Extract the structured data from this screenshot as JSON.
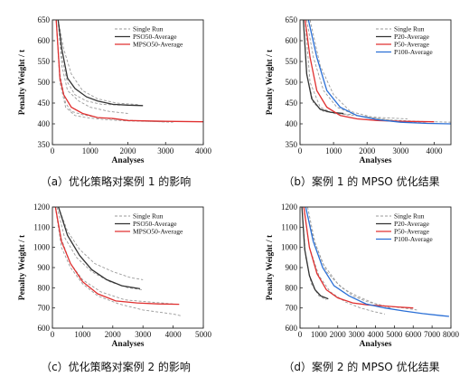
{
  "chart_data": [
    {
      "type": "line",
      "caption": "（a）优化策略对案例 1 的影响",
      "xlabel": "Analyses",
      "ylabel": "Penalty Weight / t",
      "xlim": [
        0,
        4000
      ],
      "ylim": [
        350,
        650
      ],
      "xticks": [
        0,
        1000,
        2000,
        3000,
        4000
      ],
      "yticks": [
        350,
        400,
        450,
        500,
        550,
        600,
        650
      ],
      "legend": {
        "position": "top-right",
        "entries": [
          "Single Run",
          "PSO50-Average",
          "MPSO50-Average"
        ]
      },
      "series": [
        {
          "name": "Single Run",
          "color": "#9a9a9a",
          "dashed": true,
          "x": [
            150,
            250,
            400,
            600,
            900,
            1300,
            1800
          ],
          "y": [
            650,
            560,
            500,
            470,
            455,
            447,
            445
          ]
        },
        {
          "name": "Single Run",
          "color": "#9a9a9a",
          "dashed": true,
          "x": [
            150,
            300,
            500,
            800,
            1200,
            1700,
            2300
          ],
          "y": [
            650,
            580,
            520,
            480,
            460,
            450,
            446
          ]
        },
        {
          "name": "Single Run",
          "color": "#9a9a9a",
          "dashed": true,
          "x": [
            150,
            250,
            400,
            700,
            1000,
            1500,
            2000
          ],
          "y": [
            650,
            540,
            480,
            455,
            440,
            430,
            425
          ]
        },
        {
          "name": "Single Run",
          "color": "#9a9a9a",
          "dashed": true,
          "x": [
            100,
            200,
            350,
            500,
            800,
            1200,
            1800,
            2500,
            3200
          ],
          "y": [
            650,
            520,
            450,
            430,
            422,
            415,
            410,
            406,
            404
          ]
        },
        {
          "name": "Single Run",
          "color": "#9a9a9a",
          "dashed": true,
          "x": [
            100,
            200,
            350,
            600,
            900,
            1400,
            2000,
            3000
          ],
          "y": [
            650,
            500,
            440,
            420,
            415,
            410,
            407,
            405
          ]
        },
        {
          "name": "PSO50-Average",
          "color": "#333333",
          "dashed": false,
          "x": [
            150,
            250,
            400,
            600,
            900,
            1200,
            1600,
            2000,
            2400
          ],
          "y": [
            650,
            580,
            510,
            485,
            465,
            455,
            447,
            445,
            444
          ]
        },
        {
          "name": "MPSO50-Average",
          "color": "#e03030",
          "dashed": false,
          "x": [
            100,
            200,
            300,
            500,
            800,
            1200,
            1600,
            2000,
            3000,
            4000
          ],
          "y": [
            650,
            510,
            470,
            440,
            425,
            415,
            413,
            408,
            406,
            405
          ]
        }
      ]
    },
    {
      "type": "line",
      "caption": "（b）案例 1 的 MPSO 优化结果",
      "xlabel": "Analyses",
      "ylabel": "Penalty Weight / t",
      "xlim": [
        0,
        4500
      ],
      "ylim": [
        350,
        650
      ],
      "xticks": [
        0,
        1000,
        2000,
        3000,
        4000
      ],
      "yticks": [
        350,
        400,
        450,
        500,
        550,
        600,
        650
      ],
      "legend": {
        "position": "top-right",
        "entries": [
          "Single Run",
          "P20-Average",
          "P50-Average",
          "P100-Average"
        ]
      },
      "series": [
        {
          "name": "Single Run",
          "color": "#9a9a9a",
          "dashed": true,
          "x": [
            100,
            200,
            400,
            700,
            1100,
            1600
          ],
          "y": [
            650,
            520,
            450,
            430,
            425,
            422
          ]
        },
        {
          "name": "Single Run",
          "color": "#9a9a9a",
          "dashed": true,
          "x": [
            200,
            400,
            700,
            1100,
            1700,
            2500,
            3500,
            4500
          ],
          "y": [
            650,
            560,
            480,
            440,
            420,
            410,
            406,
            404
          ]
        },
        {
          "name": "Single Run",
          "color": "#9a9a9a",
          "dashed": true,
          "x": [
            300,
            600,
            1000,
            1500,
            2200,
            3000,
            3800
          ],
          "y": [
            650,
            540,
            470,
            430,
            415,
            405,
            402
          ]
        },
        {
          "name": "Single Run",
          "color": "#9a9a9a",
          "dashed": true,
          "x": [
            150,
            300,
            600,
            1000,
            1600,
            2400,
            3200
          ],
          "y": [
            650,
            500,
            440,
            425,
            420,
            415,
            412
          ]
        },
        {
          "name": "P20-Average",
          "color": "#333333",
          "dashed": false,
          "x": [
            100,
            200,
            350,
            600,
            900,
            1300
          ],
          "y": [
            650,
            520,
            460,
            435,
            428,
            425
          ]
        },
        {
          "name": "P50-Average",
          "color": "#e03030",
          "dashed": false,
          "x": [
            150,
            300,
            500,
            800,
            1200,
            1700,
            2300,
            3000,
            4000
          ],
          "y": [
            650,
            560,
            480,
            440,
            420,
            412,
            408,
            406,
            405
          ]
        },
        {
          "name": "P100-Average",
          "color": "#2a6fd6",
          "dashed": false,
          "x": [
            250,
            500,
            800,
            1200,
            1700,
            2300,
            3000,
            3800,
            4500
          ],
          "y": [
            650,
            560,
            480,
            440,
            420,
            410,
            404,
            401,
            400
          ]
        }
      ]
    },
    {
      "type": "line",
      "caption": "（c）优化策略对案例 2 的影响",
      "xlabel": "Analyses",
      "ylabel": "Penalty Weight / t",
      "xlim": [
        0,
        5000
      ],
      "ylim": [
        600,
        1200
      ],
      "xticks": [
        0,
        1000,
        2000,
        3000,
        4000,
        5000
      ],
      "yticks": [
        600,
        700,
        800,
        900,
        1000,
        1100,
        1200
      ],
      "legend": {
        "position": "top-right",
        "entries": [
          "Single Run",
          "PSO50-Average",
          "MPSO50-Average"
        ]
      },
      "series": [
        {
          "name": "Single Run",
          "color": "#9a9a9a",
          "dashed": true,
          "x": [
            200,
            500,
            900,
            1400,
            2000,
            2600,
            3000
          ],
          "y": [
            1200,
            1080,
            990,
            920,
            880,
            850,
            840
          ]
        },
        {
          "name": "Single Run",
          "color": "#9a9a9a",
          "dashed": true,
          "x": [
            150,
            400,
            800,
            1300,
            1900,
            2500,
            3000
          ],
          "y": [
            1200,
            1050,
            950,
            880,
            830,
            800,
            790
          ]
        },
        {
          "name": "Single Run",
          "color": "#9a9a9a",
          "dashed": true,
          "x": [
            100,
            300,
            600,
            1000,
            1500,
            2200,
            3000,
            4000,
            4300
          ],
          "y": [
            1200,
            1000,
            900,
            820,
            760,
            720,
            690,
            670,
            660
          ]
        },
        {
          "name": "Single Run",
          "color": "#9a9a9a",
          "dashed": true,
          "x": [
            100,
            300,
            600,
            1000,
            1600,
            2400,
            3200,
            4000
          ],
          "y": [
            1200,
            1040,
            920,
            840,
            780,
            740,
            730,
            720
          ]
        },
        {
          "name": "PSO50-Average",
          "color": "#333333",
          "dashed": false,
          "x": [
            200,
            500,
            900,
            1300,
            1800,
            2300,
            2900
          ],
          "y": [
            1200,
            1060,
            960,
            890,
            840,
            810,
            795
          ]
        },
        {
          "name": "MPSO50-Average",
          "color": "#e03030",
          "dashed": false,
          "x": [
            100,
            300,
            600,
            1000,
            1500,
            2100,
            2800,
            3500,
            4200
          ],
          "y": [
            1200,
            1030,
            920,
            830,
            770,
            735,
            725,
            720,
            718
          ]
        }
      ]
    },
    {
      "type": "line",
      "caption": "（d）案例 2 的 MPSO 优化结果",
      "xlabel": "Analyses",
      "ylabel": "Penalty Weight / t",
      "xlim": [
        0,
        8000
      ],
      "ylim": [
        600,
        1200
      ],
      "xticks": [
        0,
        1000,
        2000,
        3000,
        4000,
        5000,
        6000,
        7000,
        8000
      ],
      "yticks": [
        600,
        700,
        800,
        900,
        1000,
        1100,
        1200
      ],
      "legend": {
        "position": "top-right",
        "entries": [
          "Single Run",
          "P20-Average",
          "P50-Average",
          "P100-Average"
        ]
      },
      "series": [
        {
          "name": "Single Run",
          "color": "#9a9a9a",
          "dashed": true,
          "x": [
            100,
            300,
            600,
            1000,
            1400
          ],
          "y": [
            1200,
            950,
            820,
            760,
            740
          ]
        },
        {
          "name": "Single Run",
          "color": "#9a9a9a",
          "dashed": true,
          "x": [
            200,
            500,
            1000,
            1600,
            2400,
            3200,
            4000,
            4500
          ],
          "y": [
            1200,
            1000,
            860,
            780,
            730,
            700,
            680,
            670
          ]
        },
        {
          "name": "Single Run",
          "color": "#9a9a9a",
          "dashed": true,
          "x": [
            300,
            700,
            1200,
            2000,
            2800,
            3600,
            4500,
            5500,
            6200
          ],
          "y": [
            1200,
            1050,
            920,
            820,
            760,
            730,
            710,
            700,
            690
          ]
        },
        {
          "name": "Single Run",
          "color": "#9a9a9a",
          "dashed": true,
          "x": [
            400,
            800,
            1400,
            2200,
            3000,
            4000,
            4800
          ],
          "y": [
            1200,
            1020,
            880,
            800,
            760,
            720,
            700
          ]
        },
        {
          "name": "P20-Average",
          "color": "#333333",
          "dashed": false,
          "x": [
            100,
            250,
            500,
            800,
            1100,
            1500
          ],
          "y": [
            1200,
            990,
            860,
            790,
            760,
            745
          ]
        },
        {
          "name": "P50-Average",
          "color": "#e03030",
          "dashed": false,
          "x": [
            200,
            500,
            900,
            1400,
            2000,
            2800,
            3600,
            4400,
            5200,
            6000
          ],
          "y": [
            1200,
            1000,
            870,
            790,
            750,
            725,
            715,
            710,
            705,
            700
          ]
        },
        {
          "name": "P100-Average",
          "color": "#2a6fd6",
          "dashed": false,
          "x": [
            300,
            700,
            1200,
            1800,
            2600,
            3500,
            4500,
            5500,
            6500,
            7500,
            7900
          ],
          "y": [
            1200,
            1030,
            900,
            810,
            760,
            720,
            700,
            685,
            672,
            662,
            658
          ]
        }
      ]
    }
  ]
}
